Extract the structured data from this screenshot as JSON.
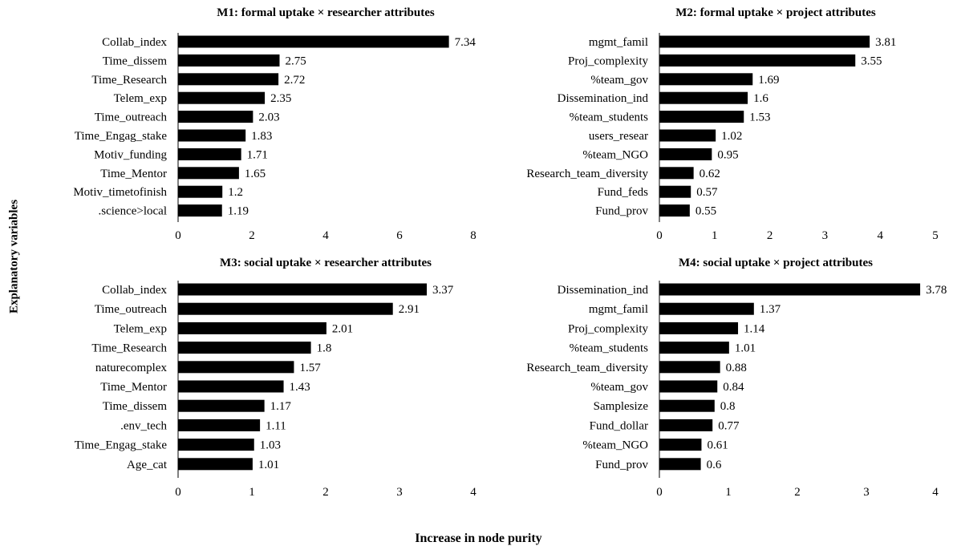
{
  "figure": {
    "ylabel": "Explanatory variables",
    "xlabel": "Increase in node purity"
  },
  "chart_data": [
    {
      "type": "bar",
      "orientation": "horizontal",
      "title": "M1: formal uptake × researcher attributes",
      "categories": [
        "Collab_index",
        "Time_dissem",
        "Time_Research",
        "Telem_exp",
        "Time_outreach",
        "Time_Engag_stake",
        "Motiv_funding",
        "Time_Mentor",
        "Motiv_timetofinish",
        ".science>local"
      ],
      "values": [
        7.34,
        2.75,
        2.72,
        2.35,
        2.03,
        1.83,
        1.71,
        1.65,
        1.2,
        1.19
      ],
      "value_labels": [
        "7.34",
        "2.75",
        "2.72",
        "2.35",
        "2.03",
        "1.83",
        "1.71",
        "1.65",
        "1.2",
        "1.19"
      ],
      "xlim": [
        0,
        8
      ],
      "xticks": [
        0,
        2,
        4,
        6,
        8
      ],
      "bar_color": "#000000"
    },
    {
      "type": "bar",
      "orientation": "horizontal",
      "title": "M2: formal uptake × project attributes",
      "categories": [
        "mgmt_famil",
        "Proj_complexity",
        "%team_gov",
        "Dissemination_ind",
        "%team_students",
        "users_resear",
        "%team_NGO",
        "Research_team_diversity",
        "Fund_feds",
        "Fund_prov"
      ],
      "values": [
        3.81,
        3.55,
        1.69,
        1.6,
        1.53,
        1.02,
        0.95,
        0.62,
        0.57,
        0.55
      ],
      "value_labels": [
        "3.81",
        "3.55",
        "1.69",
        "1.6",
        "1.53",
        "1.02",
        "0.95",
        "0.62",
        "0.57",
        "0.55"
      ],
      "xlim": [
        0,
        5
      ],
      "xticks": [
        0,
        1,
        2,
        3,
        4,
        5
      ],
      "bar_color": "#000000"
    },
    {
      "type": "bar",
      "orientation": "horizontal",
      "title": "M3: social uptake × researcher attributes",
      "categories": [
        "Collab_index",
        "Time_outreach",
        "Telem_exp",
        "Time_Research",
        "naturecomplex",
        "Time_Mentor",
        "Time_dissem",
        ".env_tech",
        "Time_Engag_stake",
        "Age_cat"
      ],
      "values": [
        3.37,
        2.91,
        2.01,
        1.8,
        1.57,
        1.43,
        1.17,
        1.11,
        1.03,
        1.01
      ],
      "value_labels": [
        "3.37",
        "2.91",
        "2.01",
        "1.8",
        "1.57",
        "1.43",
        "1.17",
        "1.11",
        "1.03",
        "1.01"
      ],
      "xlim": [
        0,
        4
      ],
      "xticks": [
        0,
        1,
        2,
        3,
        4
      ],
      "bar_color": "#000000"
    },
    {
      "type": "bar",
      "orientation": "horizontal",
      "title": "M4: social uptake × project attributes",
      "categories": [
        "Dissemination_ind",
        "mgmt_famil",
        "Proj_complexity",
        "%team_students",
        "Research_team_diversity",
        "%team_gov",
        "Samplesize",
        "Fund_dollar",
        "%team_NGO",
        "Fund_prov"
      ],
      "values": [
        3.78,
        1.37,
        1.14,
        1.01,
        0.88,
        0.84,
        0.8,
        0.77,
        0.61,
        0.6
      ],
      "value_labels": [
        "3.78",
        "1.37",
        "1.14",
        "1.01",
        "0.88",
        "0.84",
        "0.8",
        "0.77",
        "0.61",
        "0.6"
      ],
      "xlim": [
        0,
        4
      ],
      "xticks": [
        0,
        1,
        2,
        3,
        4
      ],
      "bar_color": "#000000"
    }
  ]
}
